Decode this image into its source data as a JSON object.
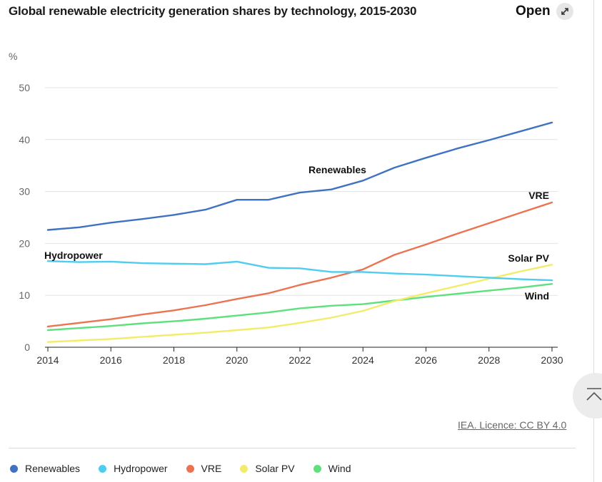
{
  "header": {
    "title": "Global renewable electricity generation shares by technology, 2015-2030",
    "open_label": "Open",
    "open_icon": "external-expand-icon"
  },
  "footer": {
    "licence": "IEA. Licence: CC BY 4.0",
    "scroll_top_icon": "chevron-up-icon"
  },
  "chart_data": {
    "type": "line",
    "title": "Global renewable electricity generation shares by technology, 2015-2030",
    "xlabel": "",
    "ylabel": "%",
    "x": [
      2014,
      2015,
      2016,
      2017,
      2018,
      2019,
      2020,
      2021,
      2022,
      2023,
      2024,
      2025,
      2026,
      2027,
      2028,
      2029,
      2030
    ],
    "xticks": [
      "2014",
      "2016",
      "2018",
      "2020",
      "2022",
      "2024",
      "2026",
      "2028",
      "2030"
    ],
    "yticks": [
      "0",
      "10",
      "20",
      "30",
      "40",
      "50"
    ],
    "ylim": [
      0,
      50
    ],
    "grid": true,
    "legend_position": "bottom",
    "series": [
      {
        "name": "Renewables",
        "color": "#3f72c0",
        "values": [
          22.6,
          23.1,
          24.0,
          24.7,
          25.5,
          26.5,
          28.4,
          28.4,
          29.8,
          30.4,
          32.1,
          34.6,
          36.5,
          38.3,
          39.9,
          41.6,
          43.3
        ]
      },
      {
        "name": "Hydropower",
        "color": "#4fcdf0",
        "values": [
          16.6,
          16.4,
          16.5,
          16.2,
          16.1,
          16.0,
          16.5,
          15.3,
          15.2,
          14.5,
          14.5,
          14.2,
          14.0,
          13.7,
          13.4,
          13.1,
          12.9
        ]
      },
      {
        "name": "VRE",
        "color": "#ec7351",
        "values": [
          4.0,
          4.7,
          5.4,
          6.3,
          7.1,
          8.1,
          9.3,
          10.4,
          12.0,
          13.4,
          15.0,
          17.8,
          19.8,
          21.9,
          23.9,
          25.9,
          27.9
        ]
      },
      {
        "name": "Solar PV",
        "color": "#f2ec6a",
        "values": [
          1.0,
          1.3,
          1.6,
          2.0,
          2.4,
          2.8,
          3.3,
          3.8,
          4.7,
          5.7,
          7.0,
          8.9,
          10.4,
          11.8,
          13.2,
          14.6,
          15.9
        ]
      },
      {
        "name": "Wind",
        "color": "#5ee07e",
        "values": [
          3.3,
          3.7,
          4.1,
          4.6,
          5.0,
          5.5,
          6.1,
          6.7,
          7.5,
          8.0,
          8.3,
          9.0,
          9.7,
          10.3,
          10.9,
          11.5,
          12.2
        ]
      }
    ],
    "annotations": [
      {
        "text": "Renewables",
        "series": "Renewables"
      },
      {
        "text": "Hydropower",
        "series": "Hydropower"
      },
      {
        "text": "VRE",
        "series": "VRE"
      },
      {
        "text": "Solar PV",
        "series": "Solar PV"
      },
      {
        "text": "Wind",
        "series": "Wind"
      }
    ]
  }
}
